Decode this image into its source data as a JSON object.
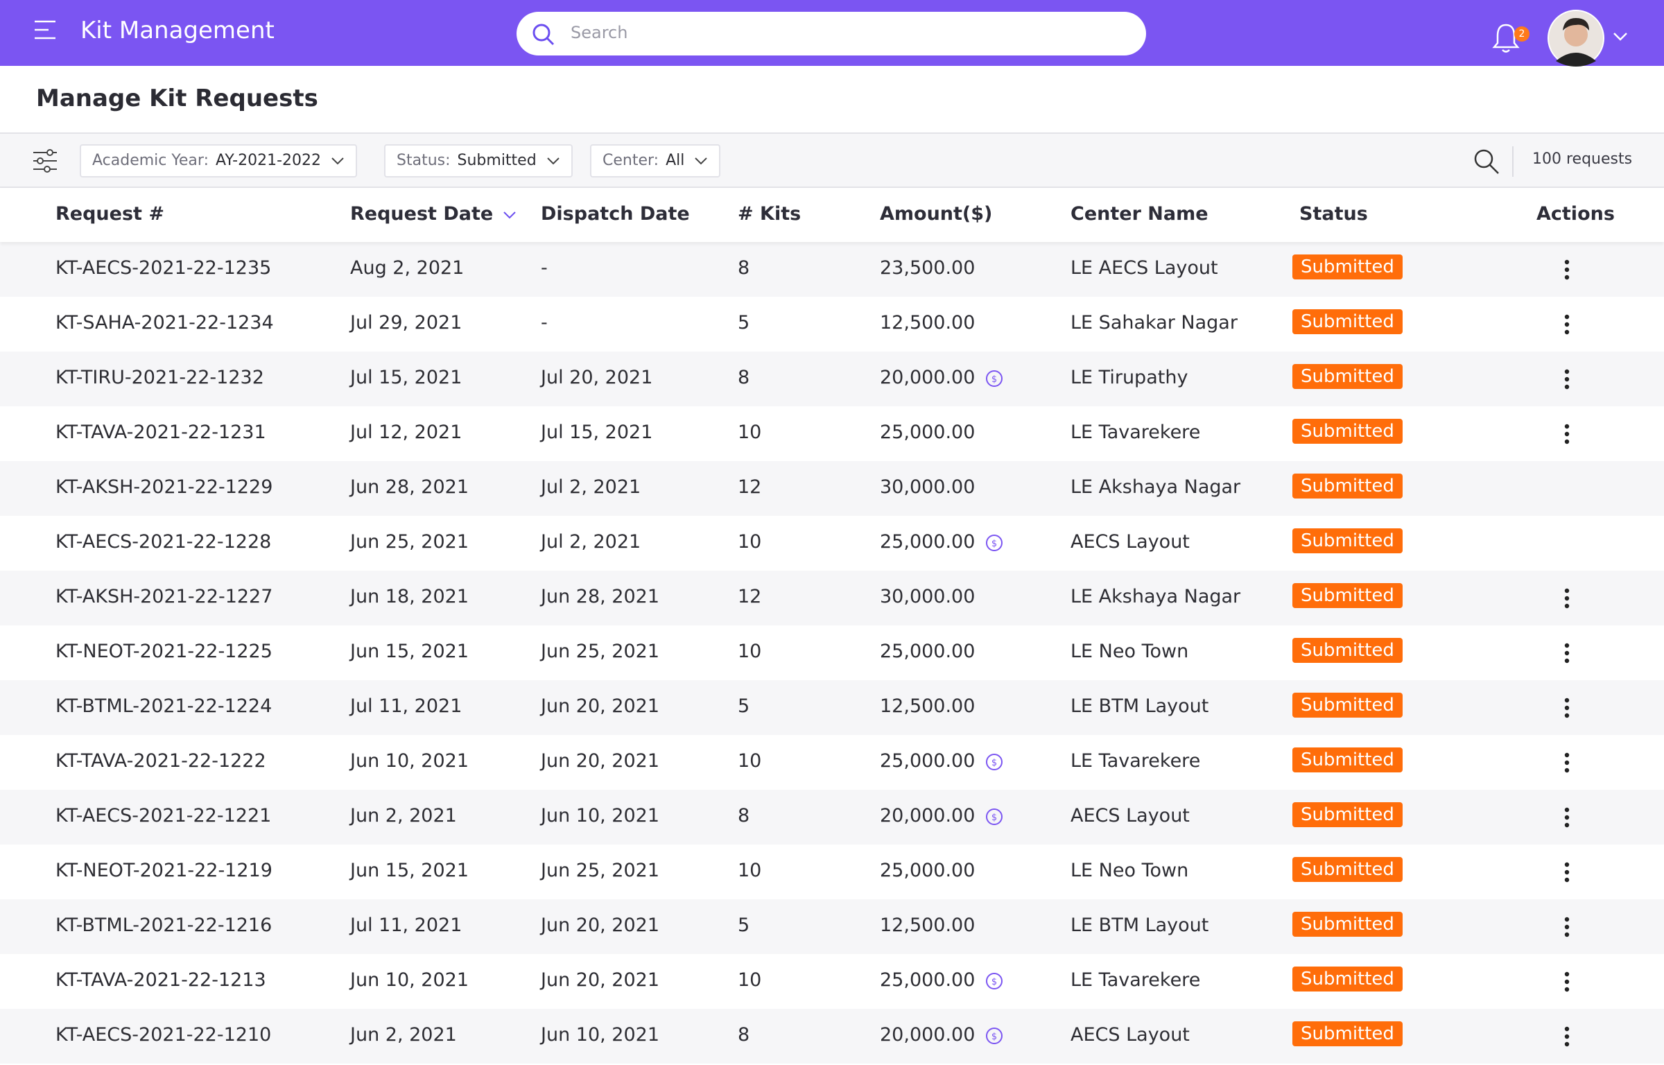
{
  "header": {
    "title": "Kit Management",
    "search_placeholder": "Search",
    "notification_count": "2"
  },
  "page_title": "Manage Kit Requests",
  "filters": [
    {
      "label": "Academic Year:",
      "value": "AY-2021-2022"
    },
    {
      "label": "Status:",
      "value": "Submitted"
    },
    {
      "label": "Center:",
      "value": "All"
    }
  ],
  "request_count": "100 requests",
  "table": {
    "columns": [
      "Request #",
      "Request Date",
      "Dispatch Date",
      "# Kits",
      "Amount($)",
      "Center Name",
      "Status",
      "Actions"
    ],
    "rows": [
      {
        "cells": [
          "KT-AECS-2021-22-1235",
          "Aug 2, 2021",
          "-",
          "8",
          "23,500.00",
          "LE AECS Layout",
          "Submitted"
        ],
        "amount_icon": false,
        "actions": true
      },
      {
        "cells": [
          "KT-SAHA-2021-22-1234",
          "Jul 29, 2021",
          "-",
          "5",
          "12,500.00",
          "LE Sahakar Nagar",
          "Submitted"
        ],
        "amount_icon": false,
        "actions": true
      },
      {
        "cells": [
          "KT-TIRU-2021-22-1232",
          "Jul 15, 2021",
          "Jul 20, 2021",
          "8",
          "20,000.00",
          "LE Tirupathy",
          "Submitted"
        ],
        "amount_icon": true,
        "actions": true
      },
      {
        "cells": [
          "KT-TAVA-2021-22-1231",
          "Jul 12, 2021",
          "Jul 15, 2021",
          "10",
          "25,000.00",
          "LE Tavarekere",
          "Submitted"
        ],
        "amount_icon": false,
        "actions": true
      },
      {
        "cells": [
          "KT-AKSH-2021-22-1229",
          "Jun 28, 2021",
          "Jul 2, 2021",
          "12",
          "30,000.00",
          "LE Akshaya Nagar",
          "Submitted"
        ],
        "amount_icon": false,
        "actions": false
      },
      {
        "cells": [
          "KT-AECS-2021-22-1228",
          "Jun 25, 2021",
          "Jul 2, 2021",
          "10",
          "25,000.00",
          "AECS Layout",
          "Submitted"
        ],
        "amount_icon": true,
        "actions": false
      },
      {
        "cells": [
          "KT-AKSH-2021-22-1227",
          "Jun 18, 2021",
          "Jun 28, 2021",
          "12",
          "30,000.00",
          "LE Akshaya Nagar",
          "Submitted"
        ],
        "amount_icon": false,
        "actions": true
      },
      {
        "cells": [
          "KT-NEOT-2021-22-1225",
          "Jun 15, 2021",
          "Jun 25, 2021",
          "10",
          "25,000.00",
          "LE Neo Town",
          "Submitted"
        ],
        "amount_icon": false,
        "actions": true
      },
      {
        "cells": [
          "KT-BTML-2021-22-1224",
          "Jul 11, 2021",
          "Jun 20, 2021",
          "5",
          "12,500.00",
          "LE BTM Layout",
          "Submitted"
        ],
        "amount_icon": false,
        "actions": true
      },
      {
        "cells": [
          "KT-TAVA-2021-22-1222",
          "Jun 10, 2021",
          "Jun 20, 2021",
          "10",
          "25,000.00",
          "LE Tavarekere",
          "Submitted"
        ],
        "amount_icon": true,
        "actions": true
      },
      {
        "cells": [
          "KT-AECS-2021-22-1221",
          "Jun 2, 2021",
          "Jun 10, 2021",
          "8",
          "20,000.00",
          "AECS Layout",
          "Submitted"
        ],
        "amount_icon": true,
        "actions": true
      },
      {
        "cells": [
          "KT-NEOT-2021-22-1219",
          "Jun 15, 2021",
          "Jun 25, 2021",
          "10",
          "25,000.00",
          "LE Neo Town",
          "Submitted"
        ],
        "amount_icon": false,
        "actions": true
      },
      {
        "cells": [
          "KT-BTML-2021-22-1216",
          "Jul 11, 2021",
          "Jun 20, 2021",
          "5",
          "12,500.00",
          "LE BTM Layout",
          "Submitted"
        ],
        "amount_icon": false,
        "actions": true
      },
      {
        "cells": [
          "KT-TAVA-2021-22-1213",
          "Jun 10, 2021",
          "Jun 20, 2021",
          "10",
          "25,000.00",
          "LE Tavarekere",
          "Submitted"
        ],
        "amount_icon": true,
        "actions": true
      },
      {
        "cells": [
          "KT-AECS-2021-22-1210",
          "Jun 2, 2021",
          "Jun 10, 2021",
          "8",
          "20,000.00",
          "AECS Layout",
          "Submitted"
        ],
        "amount_icon": true,
        "actions": true
      }
    ]
  }
}
